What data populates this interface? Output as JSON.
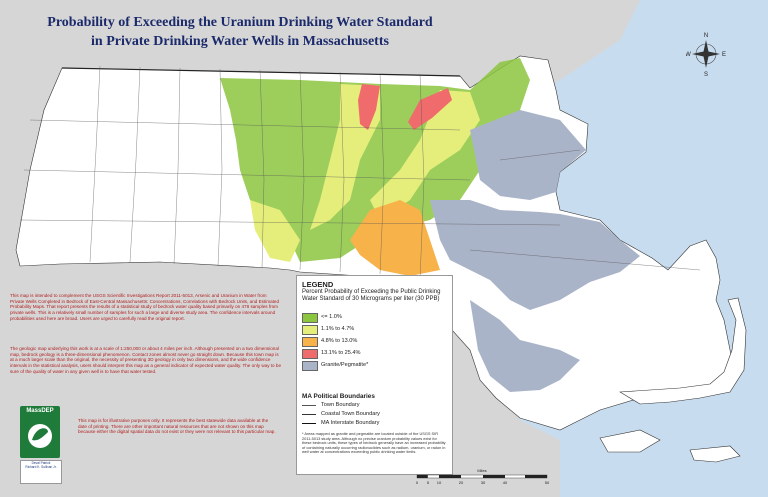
{
  "map": {
    "title_line1": "Probability of Exceeding the Uranium Drinking Water Standard",
    "title_line2": "in Private Drinking Water Wells in Massachusetts"
  },
  "legend": {
    "title": "LEGEND",
    "subtitle": "Percent Probability of Exceeding the Public Drinking Water Standard of 30 Micrograms per liter (30 PPB)",
    "classes": [
      {
        "label": "<= 1.0%",
        "color": "#8cc63f"
      },
      {
        "label": "1.1% to 4.7%",
        "color": "#e5ee7a"
      },
      {
        "label": "4.8% to 13.0%",
        "color": "#f7b24a"
      },
      {
        "label": "13.1% to 25.4%",
        "color": "#f06b6b"
      },
      {
        "label": "Granite/Pegmatite*",
        "color": "#aab4c8"
      }
    ],
    "boundaries_title": "MA Political Boundaries",
    "boundaries": [
      {
        "label": "Town Boundary"
      },
      {
        "label": "Coastal Town Boundary"
      },
      {
        "label": "MA Interstate Boundary"
      }
    ],
    "footnote": "* Areas mapped as granite and pegmatite are located outside of the USGS SIR 2011-5013 study area. Although no precise uranium probability values exist for these bedrock units, these types of bedrock generally have an increased probability of containing naturally occurring radionuclides such as radium, uranium, or radon in well water at concentrations exceeding public drinking water limits."
  },
  "notes": {
    "note1": "This map is intended to complement the USGS Scientific Investigations Report 2011-5013, Arsenic and Uranium in Water from Private Wells Completed in Bedrock of East-Central Massachusetts: Concentrations, Correlations with Bedrock Units, and Estimated Probability Maps. That report presents the results of a statistical study of bedrock water quality based primarily on 478 samples from private wells. This is a relatively small number of samples for such a large and diverse study area. The confidence intervals around probabilities used here are broad. Users are urged to carefully read the original report.",
    "note2": "The geologic map underlying this work is at a scale of 1:250,000 or about 4 miles per inch. Although presented on a two dimensional map, bedrock geology is a three-dimensional phenomenon. Contact zones almost never go straight down. Because this town map is at a much larger scale than the original, the necessity of presenting 3D geology in only two dimensions, and the wide confidence intervals in the statistical analysis, users should interpret this map as a general indicator of expected water quality. The only way to be sure of the quality of water in any given well is to have that water tested.",
    "note3": "This map is for illustrative purposes only. It represents the best statewide data available at the date of printing. There are other important natural resources that are not shown on this map because either the digital spatial data do not exist or they were not relevant to this particular map."
  },
  "agency": {
    "logo_text": "MassDEP",
    "line1": "Deval Patrick",
    "line2": "Richard K. Sullivan Jr."
  },
  "compass": {
    "n": "N",
    "s": "S",
    "e": "E",
    "w": "W"
  },
  "scale": {
    "unit": "Miles",
    "ticks": [
      "0",
      "5",
      "10",
      "20",
      "30",
      "40",
      "50"
    ]
  },
  "colors": {
    "ocean": "#c8dcef",
    "land_out_of_state": "#d6d6d6",
    "ma_land": "#ffffff",
    "title": "#1b2a6b",
    "notes": "#b02020"
  }
}
